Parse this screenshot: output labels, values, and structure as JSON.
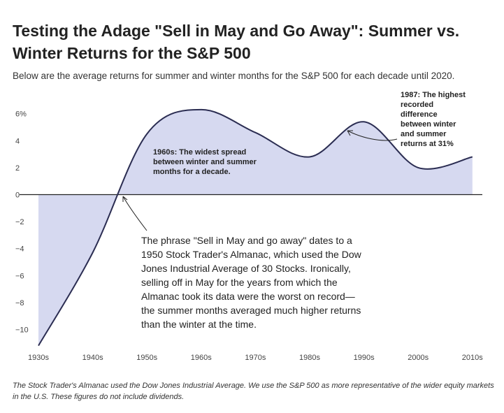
{
  "title": "Testing the Adage \"Sell in May and Go Away\": Summer vs. Winter Returns for the S&P 500",
  "subtitle": "Below are the average returns for summer and winter months for the S&P 500 for each decade until 2020.",
  "footnote": "The Stock Trader's Almanac used the Dow Jones Industrial Average. We use the S&P 500 as more representative of the wider equity markets in the U.S. These figures do not include dividends.",
  "colors": {
    "area_fill": "#d6d9f0",
    "line": "#2b2d52",
    "zero_line": "#222222",
    "text": "#222222"
  },
  "chart_data": {
    "type": "area",
    "x": [
      "1930s",
      "1940s",
      "1950s",
      "1960s",
      "1970s",
      "1980s",
      "1990s",
      "2000s",
      "2010s"
    ],
    "series": [
      {
        "values": [
          -11.2,
          -4.3,
          4.5,
          6.3,
          4.6,
          2.8,
          5.4,
          2.0,
          2.8
        ]
      }
    ],
    "ylim": [
      -11,
      7
    ],
    "yticks": [
      -10,
      -8,
      -6,
      -4,
      -2,
      0,
      2,
      4,
      6
    ],
    "ytick_labels": [
      "−10",
      "−8",
      "−6",
      "−4",
      "−2",
      "0",
      "2",
      "4",
      "6%"
    ],
    "grid": false,
    "annotations": [
      {
        "id": "a1960s",
        "at_x": 1.95,
        "at_y": 6.0,
        "lines": [
          "1960s: The widest spread",
          "between winter and summer",
          "months for a decade."
        ]
      },
      {
        "id": "a1987",
        "at_x": 5.7,
        "at_y": 9.6,
        "lines": [
          "1987: The highest",
          "recorded",
          "difference",
          "between winter",
          "and summer",
          "returns at 31%"
        ]
      },
      {
        "id": "adage",
        "at_x": 1.9,
        "at_y": -3.4,
        "lines": [
          "The phrase \"Sell in May and go away\" dates to a",
          "1950 Stock Trader's Almanac, which used the Dow",
          "Jones Industrial Average of 30 Stocks. Ironically,",
          "selling off in May for the years from which the",
          "Almanac took its data were the worst on record—",
          "the summer months averaged much higher returns",
          "than the winter at the time."
        ]
      }
    ]
  }
}
